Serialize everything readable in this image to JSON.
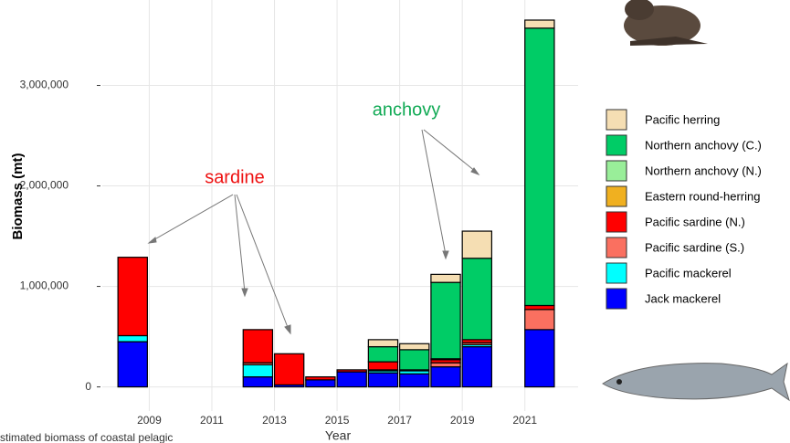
{
  "chart_data": {
    "type": "stacked_bar",
    "x": [
      2008,
      2012,
      2013,
      2014,
      2015,
      2016,
      2017,
      2018,
      2019,
      2021
    ],
    "xlabel": "Year",
    "ylabel": "Biomass (mt)",
    "xlim": [
      2007.5,
      2022.7
    ],
    "xticks": [
      2009,
      2011,
      2013,
      2015,
      2017,
      2019,
      2021
    ],
    "ylim": [
      -240000,
      3850000
    ],
    "yticks": [
      0,
      {
        "value": 1000000,
        "label": "1,000,000"
      },
      {
        "value": 2000000,
        "label": "2,000,000"
      },
      {
        "value": 3000000,
        "label": "3,000,000"
      }
    ],
    "grid": true,
    "series": [
      {
        "name": "Jack mackerel",
        "color": "#0000ff",
        "values": [
          450000,
          100000,
          20000,
          70000,
          150000,
          140000,
          130000,
          200000,
          400000,
          570000
        ]
      },
      {
        "name": "Pacific mackerel",
        "color": "#00ffff",
        "values": [
          60000,
          120000,
          0,
          0,
          0,
          20000,
          30000,
          0,
          20000,
          0
        ]
      },
      {
        "name": "Pacific sardine (S.)",
        "color": "#fa7060",
        "values": [
          0,
          20000,
          0,
          0,
          0,
          10000,
          0,
          40000,
          20000,
          200000
        ]
      },
      {
        "name": "Pacific sardine (N.)",
        "color": "#ff0000",
        "values": [
          780000,
          330000,
          310000,
          30000,
          20000,
          80000,
          10000,
          30000,
          30000,
          40000
        ]
      },
      {
        "name": "Eastern round-herring",
        "color": "#f0b020",
        "values": [
          0,
          0,
          0,
          0,
          0,
          0,
          0,
          10000,
          0,
          0
        ]
      },
      {
        "name": "Northern anchovy (N.)",
        "color": "#99ee99",
        "values": [
          0,
          0,
          0,
          0,
          0,
          0,
          0,
          0,
          0,
          0
        ]
      },
      {
        "name": "Northern anchovy (C.)",
        "color": "#00cc66",
        "values": [
          0,
          0,
          0,
          0,
          0,
          150000,
          200000,
          760000,
          810000,
          2760000
        ]
      },
      {
        "name": "Pacific herring",
        "color": "#f5deb3",
        "values": [
          0,
          0,
          0,
          0,
          0,
          70000,
          60000,
          80000,
          270000,
          80000
        ]
      }
    ],
    "annotations": [
      "sardine",
      "anchovy"
    ],
    "caption": "stimated biomass of coastal pelagic"
  }
}
